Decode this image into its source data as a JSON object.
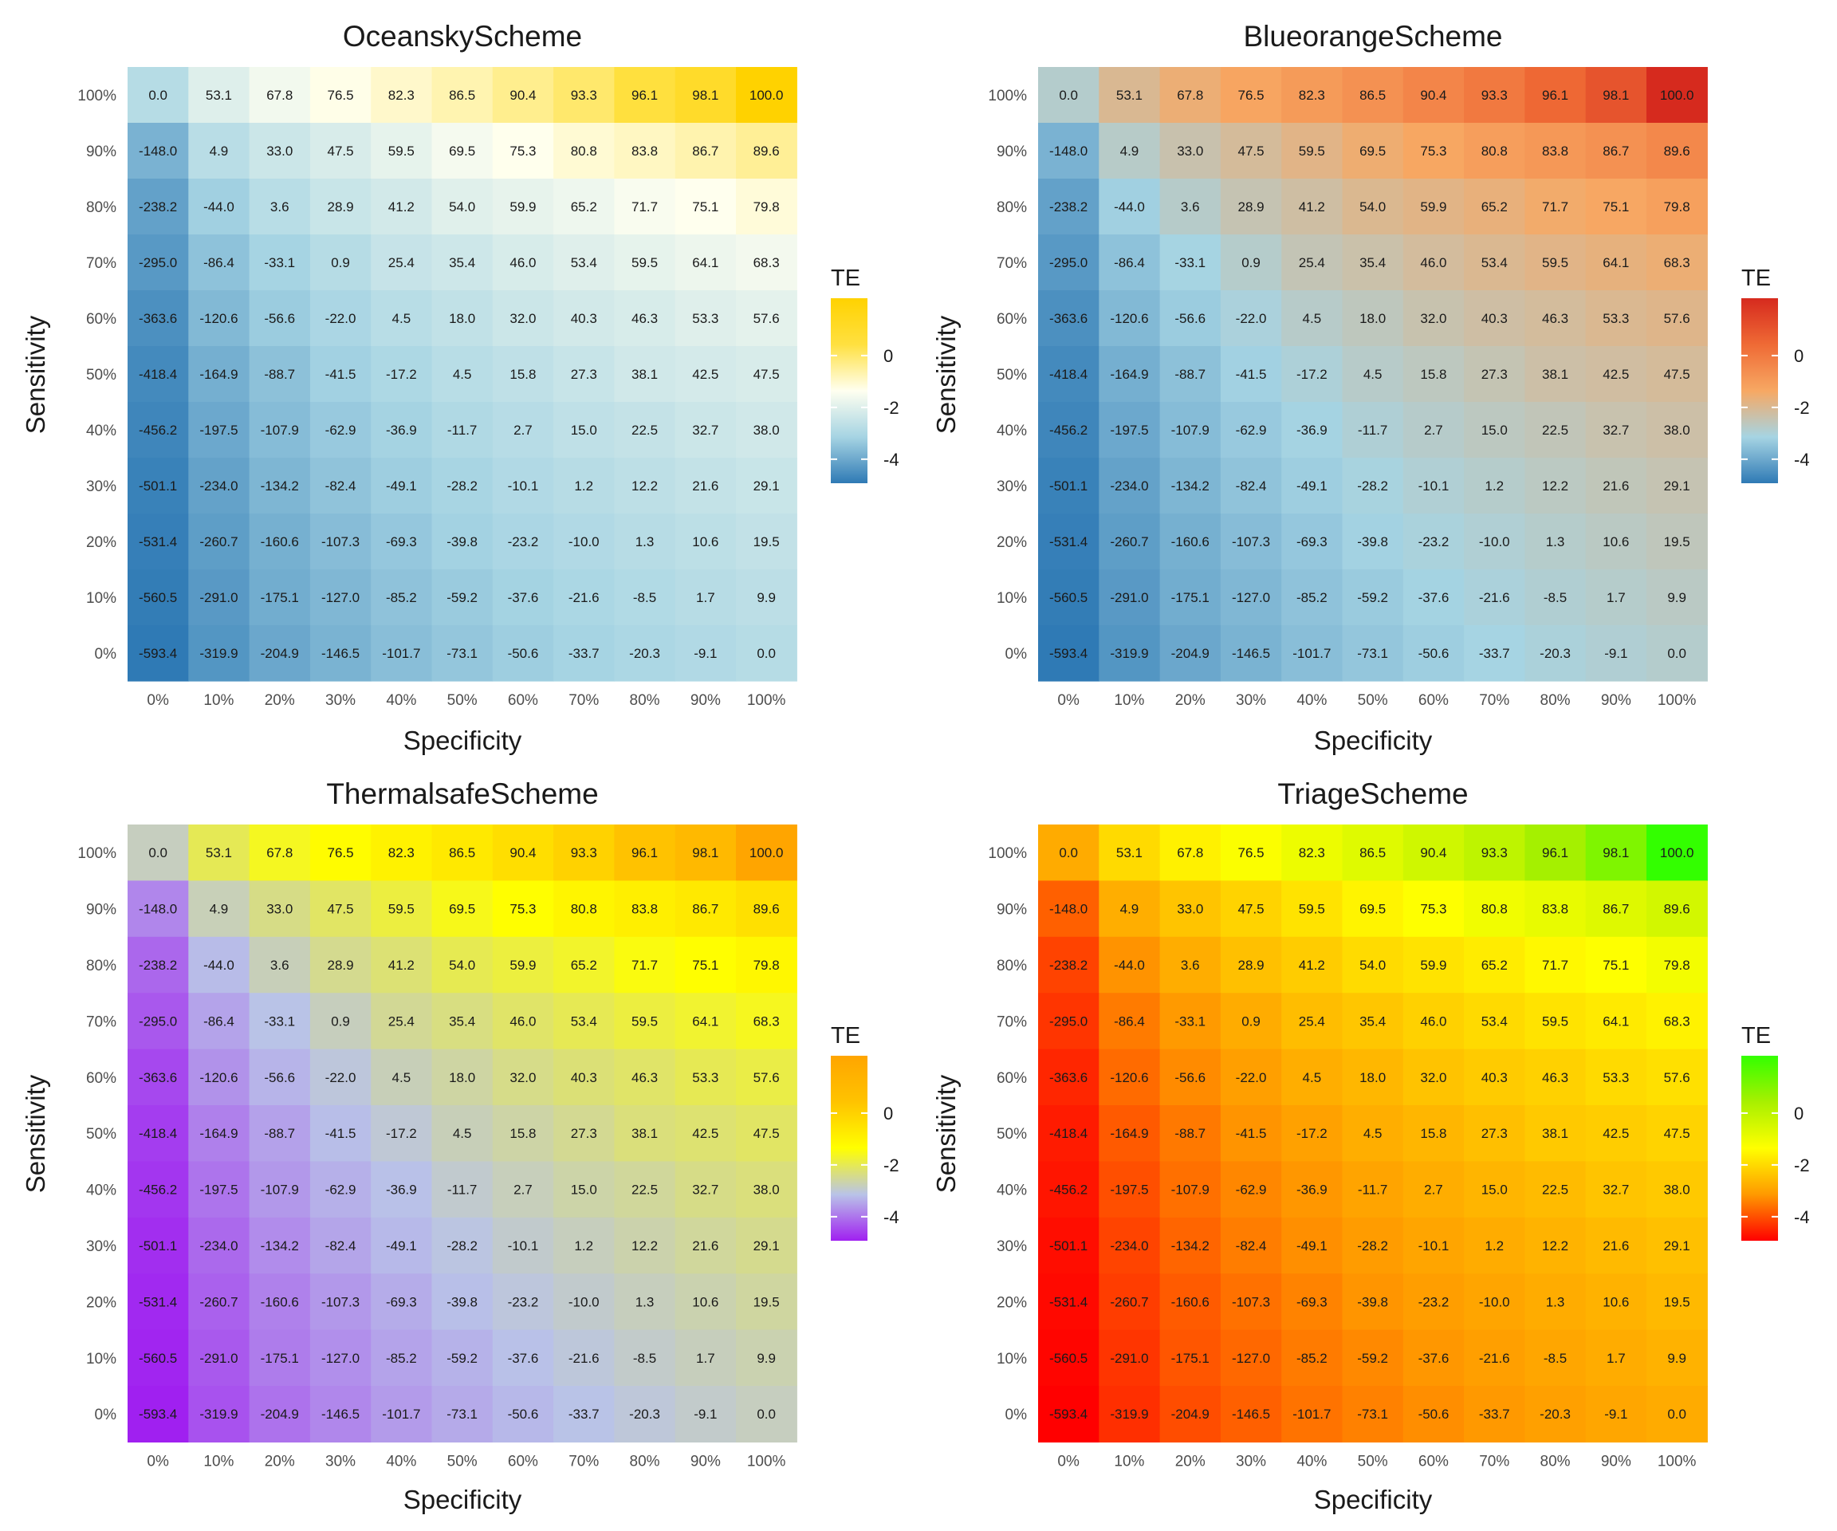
{
  "chart_data": [
    {
      "type": "heatmap",
      "title": "OceanskyScheme",
      "xlabel": "Specificity",
      "ylabel": "Sensitivity",
      "legend_title": "TE",
      "legend_ticks": [
        "0",
        "-2",
        "-4"
      ],
      "colormap": [
        "#2f7ab5",
        "#a6d4e3",
        "#fffff0",
        "#ffe040",
        "#ffd200"
      ],
      "x_ticks": [
        "0%",
        "10%",
        "20%",
        "30%",
        "40%",
        "50%",
        "60%",
        "70%",
        "80%",
        "90%",
        "100%"
      ],
      "y_ticks": [
        "100%",
        "90%",
        "80%",
        "70%",
        "60%",
        "50%",
        "40%",
        "30%",
        "20%",
        "10%",
        "0%"
      ],
      "values": [
        [
          "0.0",
          "53.1",
          "67.8",
          "76.5",
          "82.3",
          "86.5",
          "90.4",
          "93.3",
          "96.1",
          "98.1",
          "100.0"
        ],
        [
          "-148.0",
          "4.9",
          "33.0",
          "47.5",
          "59.5",
          "69.5",
          "75.3",
          "80.8",
          "83.8",
          "86.7",
          "89.6"
        ],
        [
          "-238.2",
          "-44.0",
          "3.6",
          "28.9",
          "41.2",
          "54.0",
          "59.9",
          "65.2",
          "71.7",
          "75.1",
          "79.8"
        ],
        [
          "-295.0",
          "-86.4",
          "-33.1",
          "0.9",
          "25.4",
          "35.4",
          "46.0",
          "53.4",
          "59.5",
          "64.1",
          "68.3"
        ],
        [
          "-363.6",
          "-120.6",
          "-56.6",
          "-22.0",
          "4.5",
          "18.0",
          "32.0",
          "40.3",
          "46.3",
          "53.3",
          "57.6"
        ],
        [
          "-418.4",
          "-164.9",
          "-88.7",
          "-41.5",
          "-17.2",
          "4.5",
          "15.8",
          "27.3",
          "38.1",
          "42.5",
          "47.5"
        ],
        [
          "-456.2",
          "-197.5",
          "-107.9",
          "-62.9",
          "-36.9",
          "-11.7",
          "2.7",
          "15.0",
          "22.5",
          "32.7",
          "38.0"
        ],
        [
          "-501.1",
          "-234.0",
          "-134.2",
          "-82.4",
          "-49.1",
          "-28.2",
          "-10.1",
          "1.2",
          "12.2",
          "21.6",
          "29.1"
        ],
        [
          "-531.4",
          "-260.7",
          "-160.6",
          "-107.3",
          "-69.3",
          "-39.8",
          "-23.2",
          "-10.0",
          "1.3",
          "10.6",
          "19.5"
        ],
        [
          "-560.5",
          "-291.0",
          "-175.1",
          "-127.0",
          "-85.2",
          "-59.2",
          "-37.6",
          "-21.6",
          "-8.5",
          "1.7",
          "9.9"
        ],
        [
          "-593.4",
          "-319.9",
          "-204.9",
          "-146.5",
          "-101.7",
          "-73.1",
          "-50.6",
          "-33.7",
          "-20.3",
          "-9.1",
          "0.0"
        ]
      ]
    },
    {
      "type": "heatmap",
      "title": "BlueorangeScheme",
      "xlabel": "Specificity",
      "ylabel": "Sensitivity",
      "legend_title": "TE",
      "legend_ticks": [
        "0",
        "-2",
        "-4"
      ],
      "colormap": [
        "#2f7ab5",
        "#a6d4e3",
        "#f7a863",
        "#ef6a35",
        "#d62a1e"
      ],
      "x_ticks": [
        "0%",
        "10%",
        "20%",
        "30%",
        "40%",
        "50%",
        "60%",
        "70%",
        "80%",
        "90%",
        "100%"
      ],
      "y_ticks": [
        "100%",
        "90%",
        "80%",
        "70%",
        "60%",
        "50%",
        "40%",
        "30%",
        "20%",
        "10%",
        "0%"
      ],
      "values": [
        [
          "0.0",
          "53.1",
          "67.8",
          "76.5",
          "82.3",
          "86.5",
          "90.4",
          "93.3",
          "96.1",
          "98.1",
          "100.0"
        ],
        [
          "-148.0",
          "4.9",
          "33.0",
          "47.5",
          "59.5",
          "69.5",
          "75.3",
          "80.8",
          "83.8",
          "86.7",
          "89.6"
        ],
        [
          "-238.2",
          "-44.0",
          "3.6",
          "28.9",
          "41.2",
          "54.0",
          "59.9",
          "65.2",
          "71.7",
          "75.1",
          "79.8"
        ],
        [
          "-295.0",
          "-86.4",
          "-33.1",
          "0.9",
          "25.4",
          "35.4",
          "46.0",
          "53.4",
          "59.5",
          "64.1",
          "68.3"
        ],
        [
          "-363.6",
          "-120.6",
          "-56.6",
          "-22.0",
          "4.5",
          "18.0",
          "32.0",
          "40.3",
          "46.3",
          "53.3",
          "57.6"
        ],
        [
          "-418.4",
          "-164.9",
          "-88.7",
          "-41.5",
          "-17.2",
          "4.5",
          "15.8",
          "27.3",
          "38.1",
          "42.5",
          "47.5"
        ],
        [
          "-456.2",
          "-197.5",
          "-107.9",
          "-62.9",
          "-36.9",
          "-11.7",
          "2.7",
          "15.0",
          "22.5",
          "32.7",
          "38.0"
        ],
        [
          "-501.1",
          "-234.0",
          "-134.2",
          "-82.4",
          "-49.1",
          "-28.2",
          "-10.1",
          "1.2",
          "12.2",
          "21.6",
          "29.1"
        ],
        [
          "-531.4",
          "-260.7",
          "-160.6",
          "-107.3",
          "-69.3",
          "-39.8",
          "-23.2",
          "-10.0",
          "1.3",
          "10.6",
          "19.5"
        ],
        [
          "-560.5",
          "-291.0",
          "-175.1",
          "-127.0",
          "-85.2",
          "-59.2",
          "-37.6",
          "-21.6",
          "-8.5",
          "1.7",
          "9.9"
        ],
        [
          "-593.4",
          "-319.9",
          "-204.9",
          "-146.5",
          "-101.7",
          "-73.1",
          "-50.6",
          "-33.7",
          "-20.3",
          "-9.1",
          "0.0"
        ]
      ]
    },
    {
      "type": "heatmap",
      "title": "ThermalsafeScheme",
      "xlabel": "Specificity",
      "ylabel": "Sensitivity",
      "legend_title": "TE",
      "legend_ticks": [
        "0",
        "-2",
        "-4"
      ],
      "colormap": [
        "#a020f0",
        "#b9c3e8",
        "#ffff00",
        "#ffc300",
        "#ffa500"
      ],
      "x_ticks": [
        "0%",
        "10%",
        "20%",
        "30%",
        "40%",
        "50%",
        "60%",
        "70%",
        "80%",
        "90%",
        "100%"
      ],
      "y_ticks": [
        "100%",
        "90%",
        "80%",
        "70%",
        "60%",
        "50%",
        "40%",
        "30%",
        "20%",
        "10%",
        "0%"
      ],
      "values": [
        [
          "0.0",
          "53.1",
          "67.8",
          "76.5",
          "82.3",
          "86.5",
          "90.4",
          "93.3",
          "96.1",
          "98.1",
          "100.0"
        ],
        [
          "-148.0",
          "4.9",
          "33.0",
          "47.5",
          "59.5",
          "69.5",
          "75.3",
          "80.8",
          "83.8",
          "86.7",
          "89.6"
        ],
        [
          "-238.2",
          "-44.0",
          "3.6",
          "28.9",
          "41.2",
          "54.0",
          "59.9",
          "65.2",
          "71.7",
          "75.1",
          "79.8"
        ],
        [
          "-295.0",
          "-86.4",
          "-33.1",
          "0.9",
          "25.4",
          "35.4",
          "46.0",
          "53.4",
          "59.5",
          "64.1",
          "68.3"
        ],
        [
          "-363.6",
          "-120.6",
          "-56.6",
          "-22.0",
          "4.5",
          "18.0",
          "32.0",
          "40.3",
          "46.3",
          "53.3",
          "57.6"
        ],
        [
          "-418.4",
          "-164.9",
          "-88.7",
          "-41.5",
          "-17.2",
          "4.5",
          "15.8",
          "27.3",
          "38.1",
          "42.5",
          "47.5"
        ],
        [
          "-456.2",
          "-197.5",
          "-107.9",
          "-62.9",
          "-36.9",
          "-11.7",
          "2.7",
          "15.0",
          "22.5",
          "32.7",
          "38.0"
        ],
        [
          "-501.1",
          "-234.0",
          "-134.2",
          "-82.4",
          "-49.1",
          "-28.2",
          "-10.1",
          "1.2",
          "12.2",
          "21.6",
          "29.1"
        ],
        [
          "-531.4",
          "-260.7",
          "-160.6",
          "-107.3",
          "-69.3",
          "-39.8",
          "-23.2",
          "-10.0",
          "1.3",
          "10.6",
          "19.5"
        ],
        [
          "-560.5",
          "-291.0",
          "-175.1",
          "-127.0",
          "-85.2",
          "-59.2",
          "-37.6",
          "-21.6",
          "-8.5",
          "1.7",
          "9.9"
        ],
        [
          "-593.4",
          "-319.9",
          "-204.9",
          "-146.5",
          "-101.7",
          "-73.1",
          "-50.6",
          "-33.7",
          "-20.3",
          "-9.1",
          "0.0"
        ]
      ]
    },
    {
      "type": "heatmap",
      "title": "TriageScheme",
      "xlabel": "Specificity",
      "ylabel": "Sensitivity",
      "legend_title": "TE",
      "legend_ticks": [
        "0",
        "-2",
        "-4"
      ],
      "colormap": [
        "#ff0000",
        "#ff9900",
        "#ffff00",
        "#a8f000",
        "#33ff00"
      ],
      "x_ticks": [
        "0%",
        "10%",
        "20%",
        "30%",
        "40%",
        "50%",
        "60%",
        "70%",
        "80%",
        "90%",
        "100%"
      ],
      "y_ticks": [
        "100%",
        "90%",
        "80%",
        "70%",
        "60%",
        "50%",
        "40%",
        "30%",
        "20%",
        "10%",
        "0%"
      ],
      "values": [
        [
          "0.0",
          "53.1",
          "67.8",
          "76.5",
          "82.3",
          "86.5",
          "90.4",
          "93.3",
          "96.1",
          "98.1",
          "100.0"
        ],
        [
          "-148.0",
          "4.9",
          "33.0",
          "47.5",
          "59.5",
          "69.5",
          "75.3",
          "80.8",
          "83.8",
          "86.7",
          "89.6"
        ],
        [
          "-238.2",
          "-44.0",
          "3.6",
          "28.9",
          "41.2",
          "54.0",
          "59.9",
          "65.2",
          "71.7",
          "75.1",
          "79.8"
        ],
        [
          "-295.0",
          "-86.4",
          "-33.1",
          "0.9",
          "25.4",
          "35.4",
          "46.0",
          "53.4",
          "59.5",
          "64.1",
          "68.3"
        ],
        [
          "-363.6",
          "-120.6",
          "-56.6",
          "-22.0",
          "4.5",
          "18.0",
          "32.0",
          "40.3",
          "46.3",
          "53.3",
          "57.6"
        ],
        [
          "-418.4",
          "-164.9",
          "-88.7",
          "-41.5",
          "-17.2",
          "4.5",
          "15.8",
          "27.3",
          "38.1",
          "42.5",
          "47.5"
        ],
        [
          "-456.2",
          "-197.5",
          "-107.9",
          "-62.9",
          "-36.9",
          "-11.7",
          "2.7",
          "15.0",
          "22.5",
          "32.7",
          "38.0"
        ],
        [
          "-501.1",
          "-234.0",
          "-134.2",
          "-82.4",
          "-49.1",
          "-28.2",
          "-10.1",
          "1.2",
          "12.2",
          "21.6",
          "29.1"
        ],
        [
          "-531.4",
          "-260.7",
          "-160.6",
          "-107.3",
          "-69.3",
          "-39.8",
          "-23.2",
          "-10.0",
          "1.3",
          "10.6",
          "19.5"
        ],
        [
          "-560.5",
          "-291.0",
          "-175.1",
          "-127.0",
          "-85.2",
          "-59.2",
          "-37.6",
          "-21.6",
          "-8.5",
          "1.7",
          "9.9"
        ],
        [
          "-593.4",
          "-319.9",
          "-204.9",
          "-146.5",
          "-101.7",
          "-73.1",
          "-50.6",
          "-33.7",
          "-20.3",
          "-9.1",
          "0.0"
        ]
      ]
    }
  ]
}
